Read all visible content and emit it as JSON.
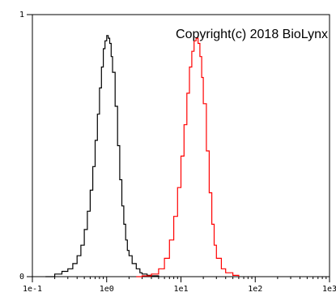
{
  "chart_data": {
    "type": "line",
    "title": "",
    "xlabel": "",
    "ylabel": "",
    "x_scale": "log",
    "xlim": [
      0.1,
      1000
    ],
    "ylim": [
      0,
      1
    ],
    "x_tick_values": [
      0.1,
      1,
      10,
      100,
      1000
    ],
    "x_tick_labels": [
      "1e-1",
      "1e0",
      "1e1",
      "1e2",
      "1e3"
    ],
    "y_tick_values": [
      0,
      1
    ],
    "y_tick_labels": [
      "0",
      "1"
    ],
    "grid": false,
    "annotation": "Copyright(c) 2018 BioLynx",
    "series": [
      {
        "color": "#000000",
        "x": [
          0.15,
          0.2,
          0.25,
          0.3,
          0.35,
          0.4,
          0.45,
          0.5,
          0.55,
          0.6,
          0.65,
          0.7,
          0.75,
          0.8,
          0.85,
          0.9,
          0.95,
          1.0,
          1.05,
          1.1,
          1.15,
          1.2,
          1.3,
          1.4,
          1.5,
          1.6,
          1.7,
          1.8,
          1.9,
          2.0,
          2.2,
          2.5,
          2.8,
          3.0,
          3.5,
          4.0,
          5.0
        ],
        "y": [
          0.0,
          0.01,
          0.02,
          0.03,
          0.05,
          0.08,
          0.12,
          0.18,
          0.25,
          0.33,
          0.42,
          0.52,
          0.62,
          0.72,
          0.8,
          0.87,
          0.9,
          0.92,
          0.91,
          0.89,
          0.84,
          0.78,
          0.65,
          0.5,
          0.37,
          0.27,
          0.2,
          0.14,
          0.1,
          0.08,
          0.05,
          0.03,
          0.015,
          0.01,
          0.005,
          0.003,
          0.0
        ]
      },
      {
        "color": "#ff0000",
        "x": [
          2.5,
          3.0,
          4.0,
          5.0,
          6.0,
          7.0,
          8.0,
          9.0,
          10.0,
          11.0,
          12.0,
          13.0,
          14.0,
          15.0,
          16.0,
          17.0,
          18.0,
          19.0,
          20.0,
          22.0,
          24.0,
          26.0,
          28.0,
          30.0,
          35.0,
          40.0,
          50.0,
          60.0
        ],
        "y": [
          0.0,
          0.003,
          0.01,
          0.03,
          0.07,
          0.14,
          0.23,
          0.34,
          0.46,
          0.58,
          0.7,
          0.8,
          0.86,
          0.9,
          0.91,
          0.89,
          0.84,
          0.76,
          0.66,
          0.48,
          0.32,
          0.2,
          0.12,
          0.07,
          0.03,
          0.015,
          0.005,
          0.0
        ]
      }
    ]
  }
}
